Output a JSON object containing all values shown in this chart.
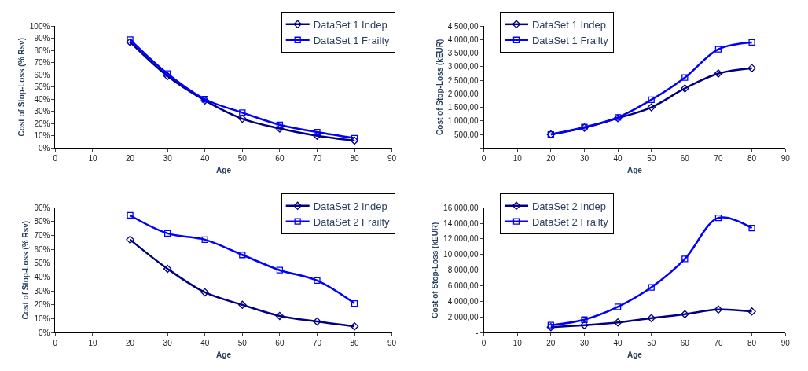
{
  "chart_data": [
    {
      "type": "line",
      "xlabel": "Age",
      "ylabel": "Cost of Stop-Loss (% Rsv)",
      "x": [
        20,
        30,
        40,
        50,
        60,
        70,
        80
      ],
      "xlim": [
        0,
        90
      ],
      "xticks": [
        0,
        10,
        20,
        30,
        40,
        50,
        60,
        70,
        80,
        90
      ],
      "ylim": [
        0,
        100
      ],
      "yticks": [
        {
          "value": 0,
          "label": "0%"
        },
        {
          "value": 10,
          "label": "10%"
        },
        {
          "value": 20,
          "label": "20%"
        },
        {
          "value": 30,
          "label": "30%"
        },
        {
          "value": 40,
          "label": "40%"
        },
        {
          "value": 50,
          "label": "50%"
        },
        {
          "value": 60,
          "label": "60%"
        },
        {
          "value": 70,
          "label": "70%"
        },
        {
          "value": 80,
          "label": "80%"
        },
        {
          "value": 90,
          "label": "90%"
        },
        {
          "value": 100,
          "label": "100%"
        }
      ],
      "grid": false,
      "legend": "top right",
      "line_style": "solid",
      "series": [
        {
          "name": "DataSet 1 Indep",
          "color": "#000080",
          "marker": "diamond",
          "values": [
            87,
            59,
            39,
            24,
            16,
            10,
            6
          ]
        },
        {
          "name": "DataSet 1 Frailty",
          "color": "#0000ff",
          "marker": "square",
          "values": [
            89,
            61,
            40,
            29,
            19,
            13,
            8
          ]
        }
      ]
    },
    {
      "type": "line",
      "xlabel": "Age",
      "ylabel": "Cost of Stop-Loss (kEUR)",
      "x": [
        20,
        30,
        40,
        50,
        60,
        70,
        80
      ],
      "xlim": [
        0,
        90
      ],
      "xticks": [
        0,
        10,
        20,
        30,
        40,
        50,
        60,
        70,
        80,
        90
      ],
      "ylim": [
        0,
        4500
      ],
      "yticks": [
        {
          "value": 0,
          "label": "-"
        },
        {
          "value": 500,
          "label": "500,00"
        },
        {
          "value": 1000,
          "label": "1 000,00"
        },
        {
          "value": 1500,
          "label": "1 500,00"
        },
        {
          "value": 2000,
          "label": "2 000,00"
        },
        {
          "value": 2500,
          "label": "2 500,00"
        },
        {
          "value": 3000,
          "label": "3 000,00"
        },
        {
          "value": 3500,
          "label": "3 500,00"
        },
        {
          "value": 4000,
          "label": "4 000,00"
        },
        {
          "value": 4500,
          "label": "4 500,00"
        }
      ],
      "grid": false,
      "legend": "top left",
      "line_style": "solid",
      "series": [
        {
          "name": "DataSet 1 Indep",
          "color": "#000080",
          "marker": "diamond",
          "values": [
            500,
            750,
            1100,
            1500,
            2200,
            2750,
            2950
          ]
        },
        {
          "name": "DataSet 1 Frailty",
          "color": "#0000ff",
          "marker": "square",
          "values": [
            500,
            770,
            1130,
            1780,
            2600,
            3650,
            3900
          ]
        }
      ]
    },
    {
      "type": "line",
      "xlabel": "Age",
      "ylabel": "Cost of Stop-Loss (% Rsv)",
      "x": [
        20,
        30,
        40,
        50,
        60,
        70,
        80
      ],
      "xlim": [
        0,
        90
      ],
      "xticks": [
        0,
        10,
        20,
        30,
        40,
        50,
        60,
        70,
        80,
        90
      ],
      "ylim": [
        0,
        90
      ],
      "yticks": [
        {
          "value": 0,
          "label": "0%"
        },
        {
          "value": 10,
          "label": "10%"
        },
        {
          "value": 20,
          "label": "20%"
        },
        {
          "value": 30,
          "label": "30%"
        },
        {
          "value": 40,
          "label": "40%"
        },
        {
          "value": 50,
          "label": "50%"
        },
        {
          "value": 60,
          "label": "60%"
        },
        {
          "value": 70,
          "label": "70%"
        },
        {
          "value": 80,
          "label": "80%"
        },
        {
          "value": 90,
          "label": "90%"
        }
      ],
      "grid": false,
      "legend": "top right",
      "line_style": "solid",
      "series": [
        {
          "name": "DataSet 2 Indep",
          "color": "#000080",
          "marker": "diamond",
          "values": [
            67,
            46,
            29,
            20,
            12,
            8,
            4.5
          ]
        },
        {
          "name": "DataSet 2 Frailty",
          "color": "#0000ff",
          "marker": "square",
          "values": [
            84.5,
            71.5,
            67,
            56,
            45,
            37.5,
            21
          ]
        }
      ]
    },
    {
      "type": "line",
      "xlabel": "Age",
      "ylabel": "Cost of Stop-Loss (kEUR)",
      "x": [
        20,
        30,
        40,
        50,
        60,
        70,
        80
      ],
      "xlim": [
        0,
        90
      ],
      "xticks": [
        0,
        10,
        20,
        30,
        40,
        50,
        60,
        70,
        80,
        90
      ],
      "ylim": [
        0,
        16000
      ],
      "yticks": [
        {
          "value": 0,
          "label": "-"
        },
        {
          "value": 2000,
          "label": "2 000,00"
        },
        {
          "value": 4000,
          "label": "4 000,00"
        },
        {
          "value": 6000,
          "label": "6 000,00"
        },
        {
          "value": 8000,
          "label": "8 000,00"
        },
        {
          "value": 10000,
          "label": "10 000,00"
        },
        {
          "value": 12000,
          "label": "12 000,00"
        },
        {
          "value": 14000,
          "label": "14 000,00"
        },
        {
          "value": 16000,
          "label": "16 000,00"
        }
      ],
      "grid": false,
      "legend": "top left",
      "line_style": "solid",
      "series": [
        {
          "name": "DataSet 2 Indep",
          "color": "#000080",
          "marker": "diamond",
          "values": [
            700,
            950,
            1300,
            1850,
            2350,
            2950,
            2700
          ]
        },
        {
          "name": "DataSet 2 Frailty",
          "color": "#0000ff",
          "marker": "square",
          "values": [
            950,
            1650,
            3300,
            5800,
            9450,
            14700,
            13400
          ]
        }
      ]
    }
  ]
}
